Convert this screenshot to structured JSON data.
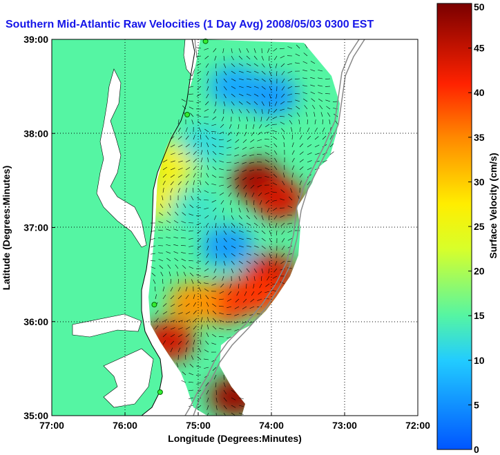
{
  "chart_data": {
    "type": "heatmap",
    "title": "Southern Mid-Atlantic Raw Velocities (1 Day Avg) 2008/05/03 0300 EST",
    "xlabel": "Longitude (Degrees:Minutes)",
    "ylabel": "Latitude (Degrees:Minutes)",
    "colorbar_label": "Surface Velocity (cm/s)",
    "x_ticks": [
      "77:00",
      "76:00",
      "75:00",
      "74:00",
      "73:00",
      "72:00"
    ],
    "x_values": [
      -77,
      -76,
      -75,
      -74,
      -73,
      -72
    ],
    "y_ticks": [
      "35:00",
      "36:00",
      "37:00",
      "38:00",
      "39:00"
    ],
    "y_values": [
      35,
      36,
      37,
      38,
      39
    ],
    "colorbar_ticks": [
      0,
      5,
      10,
      15,
      20,
      25,
      30,
      35,
      40,
      45,
      50
    ],
    "xlim": [
      -77,
      -72
    ],
    "ylim": [
      35,
      39
    ],
    "clim": [
      0,
      50
    ],
    "grid": true,
    "hotspots": [
      {
        "lon": -74.2,
        "lat": 37.5,
        "velocity": 48
      },
      {
        "lon": -73.9,
        "lat": 37.3,
        "velocity": 44
      },
      {
        "lon": -74.0,
        "lat": 36.5,
        "velocity": 44
      },
      {
        "lon": -74.2,
        "lat": 36.3,
        "velocity": 40
      },
      {
        "lon": -74.65,
        "lat": 36.2,
        "velocity": 40
      },
      {
        "lon": -75.05,
        "lat": 36.2,
        "velocity": 34
      },
      {
        "lon": -74.5,
        "lat": 35.2,
        "velocity": 48
      },
      {
        "lon": -75.4,
        "lat": 35.8,
        "velocity": 44
      },
      {
        "lon": -75.45,
        "lat": 37.3,
        "velocity": 26
      },
      {
        "lon": -75.35,
        "lat": 37.7,
        "velocity": 26
      },
      {
        "lon": -74.5,
        "lat": 38.5,
        "velocity": 7
      },
      {
        "lon": -74.0,
        "lat": 38.4,
        "velocity": 6
      },
      {
        "lon": -74.6,
        "lat": 36.8,
        "velocity": 6
      },
      {
        "lon": -75.05,
        "lat": 37.2,
        "velocity": 13
      },
      {
        "lon": -74.9,
        "lat": 37.9,
        "velocity": 12
      }
    ],
    "stations": [
      {
        "lon": -74.9,
        "lat": 38.98
      },
      {
        "lon": -75.15,
        "lat": 38.2
      },
      {
        "lon": -75.6,
        "lat": 36.18
      },
      {
        "lon": -75.52,
        "lat": 35.25
      }
    ]
  },
  "colors": {
    "land": "#55f5a3",
    "title": "#1515e8",
    "coast_line": "#000000"
  }
}
